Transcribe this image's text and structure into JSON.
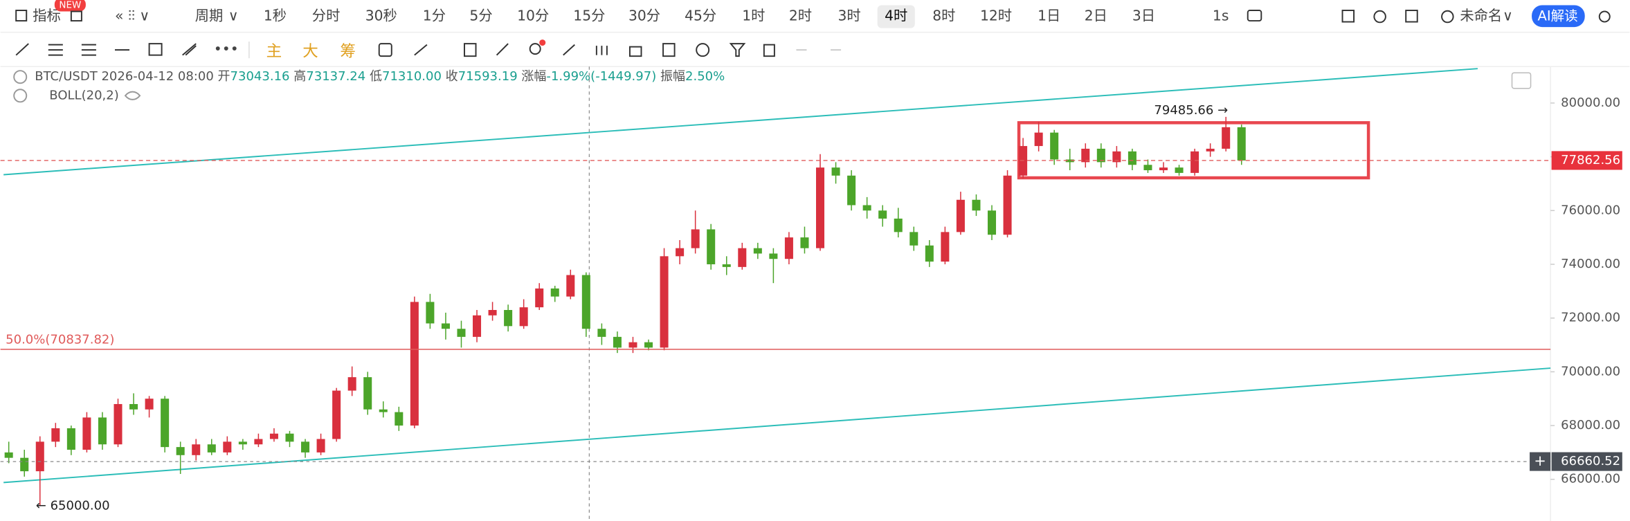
{
  "toolbar": {
    "indicator": "指标",
    "badge": "NEW",
    "period": "周期",
    "intervals": [
      "1秒",
      "分时",
      "30秒",
      "1分",
      "5分",
      "10分",
      "15分",
      "30分",
      "45分",
      "1时",
      "2时",
      "3时",
      "4时",
      "8时",
      "12时",
      "1日",
      "2日",
      "3日"
    ],
    "active": 12,
    "speed": "1s",
    "layout_name": "未命名",
    "ai": "AI解读"
  },
  "tools": {
    "main": "主",
    "big": "大",
    "chips": "筹"
  },
  "legend": {
    "symbol": "BTC/USDT",
    "time": "2026-04-12 08:00",
    "open_label": "开",
    "open": "73043.16",
    "high_label": "高",
    "high": "73137.24",
    "low_label": "低",
    "low": "71310.00",
    "close_label": "收",
    "close": "71593.19",
    "change_label": "涨幅",
    "change": "-1.99%(-1449.97)",
    "amplitude_label": "振幅",
    "amplitude": "2.50%",
    "indicator": "BOLL(20,2)"
  },
  "chart_data": {
    "type": "candlestick",
    "up_color": "#d9303e",
    "down_color": "#4ca52a",
    "ylim": [
      64449,
      81357
    ],
    "yticks": [
      {
        "value": 66000,
        "label": "66000.00"
      },
      {
        "value": 68000,
        "label": "68000.00"
      },
      {
        "value": 70000,
        "label": "70000.00"
      },
      {
        "value": 72000,
        "label": "72000.00"
      },
      {
        "value": 74000,
        "label": "74000.00"
      },
      {
        "value": 76000,
        "label": "76000.00"
      },
      {
        "value": 78000,
        "label": "78000.00"
      },
      {
        "value": 80000,
        "label": "80000.00"
      }
    ],
    "candles": [
      [
        67000,
        67400,
        66600,
        66800
      ],
      [
        66800,
        67100,
        66100,
        66300
      ],
      [
        66300,
        67600,
        65000,
        67400
      ],
      [
        67400,
        68100,
        67200,
        67900
      ],
      [
        67900,
        68000,
        66900,
        67100
      ],
      [
        67100,
        68500,
        67000,
        68300
      ],
      [
        68300,
        68500,
        67100,
        67300
      ],
      [
        67300,
        69000,
        67200,
        68800
      ],
      [
        68800,
        69200,
        68400,
        68600
      ],
      [
        68600,
        69100,
        68300,
        69000
      ],
      [
        69000,
        69100,
        67000,
        67200
      ],
      [
        67200,
        67400,
        66200,
        66900
      ],
      [
        66900,
        67500,
        66700,
        67300
      ],
      [
        67300,
        67500,
        66900,
        67000
      ],
      [
        67000,
        67600,
        66900,
        67400
      ],
      [
        67400,
        67500,
        67100,
        67300
      ],
      [
        67300,
        67700,
        67200,
        67500
      ],
      [
        67500,
        67900,
        67400,
        67700
      ],
      [
        67700,
        67800,
        67200,
        67400
      ],
      [
        67400,
        67500,
        66800,
        67000
      ],
      [
        67000,
        67700,
        66900,
        67500
      ],
      [
        67500,
        69400,
        67400,
        69300
      ],
      [
        69300,
        70200,
        69100,
        69800
      ],
      [
        69800,
        70000,
        68400,
        68600
      ],
      [
        68600,
        68900,
        68300,
        68500
      ],
      [
        68500,
        68700,
        67800,
        68000
      ],
      [
        68000,
        72800,
        67900,
        72600
      ],
      [
        72600,
        72900,
        71600,
        71800
      ],
      [
        71800,
        72200,
        71200,
        71600
      ],
      [
        71600,
        71900,
        70900,
        71300
      ],
      [
        71300,
        72300,
        71100,
        72100
      ],
      [
        72100,
        72600,
        71900,
        72300
      ],
      [
        72300,
        72500,
        71500,
        71700
      ],
      [
        71700,
        72700,
        71600,
        72400
      ],
      [
        72400,
        73300,
        72300,
        73100
      ],
      [
        73100,
        73200,
        72600,
        72800
      ],
      [
        72800,
        73800,
        72700,
        73600
      ],
      [
        73600,
        73700,
        71300,
        71600
      ],
      [
        71600,
        71800,
        71000,
        71300
      ],
      [
        71300,
        71500,
        70700,
        70900
      ],
      [
        70900,
        71300,
        70700,
        71100
      ],
      [
        71100,
        71200,
        70800,
        70900
      ],
      [
        70900,
        74600,
        70800,
        74300
      ],
      [
        74300,
        74900,
        74000,
        74600
      ],
      [
        74600,
        76000,
        74400,
        75300
      ],
      [
        75300,
        75500,
        73800,
        74000
      ],
      [
        74000,
        74300,
        73600,
        73900
      ],
      [
        73900,
        74800,
        73800,
        74600
      ],
      [
        74600,
        74800,
        74200,
        74400
      ],
      [
        74400,
        74600,
        73300,
        74200
      ],
      [
        74200,
        75200,
        74000,
        75000
      ],
      [
        75000,
        75400,
        74400,
        74600
      ],
      [
        74600,
        78100,
        74500,
        77600
      ],
      [
        77600,
        77800,
        77000,
        77300
      ],
      [
        77300,
        77500,
        76000,
        76200
      ],
      [
        76200,
        76500,
        75700,
        76000
      ],
      [
        76000,
        76200,
        75400,
        75700
      ],
      [
        75700,
        76100,
        75000,
        75200
      ],
      [
        75200,
        75400,
        74500,
        74700
      ],
      [
        74700,
        74900,
        73900,
        74100
      ],
      [
        74100,
        75400,
        74000,
        75200
      ],
      [
        75200,
        76700,
        75100,
        76400
      ],
      [
        76400,
        76600,
        75800,
        76000
      ],
      [
        76000,
        76200,
        74900,
        75100
      ],
      [
        75100,
        77500,
        75000,
        77300
      ],
      [
        77300,
        78700,
        77200,
        78400
      ],
      [
        78400,
        79300,
        78200,
        78900
      ],
      [
        78900,
        79000,
        77700,
        77900
      ],
      [
        77900,
        78300,
        77500,
        77800
      ],
      [
        77800,
        78500,
        77600,
        78300
      ],
      [
        78300,
        78500,
        77600,
        77800
      ],
      [
        77800,
        78400,
        77600,
        78200
      ],
      [
        78200,
        78300,
        77500,
        77700
      ],
      [
        77700,
        77900,
        77400,
        77500
      ],
      [
        77500,
        77800,
        77400,
        77600
      ],
      [
        77600,
        77700,
        77300,
        77400
      ],
      [
        77400,
        78300,
        77300,
        78200
      ],
      [
        78200,
        78500,
        78000,
        78300
      ],
      [
        78300,
        79485.66,
        78200,
        79100
      ],
      [
        79100,
        79200,
        77700,
        77862.56
      ]
    ],
    "last_price": 77862.56,
    "crosshair_price": 66660.52,
    "high_marker": {
      "value": 79485.66,
      "label": "79485.66 →"
    },
    "low_marker": {
      "value": 65000,
      "label": "← 65000.00"
    },
    "fib": {
      "value": 70837.82,
      "label": "50.0%(70837.82)"
    }
  }
}
